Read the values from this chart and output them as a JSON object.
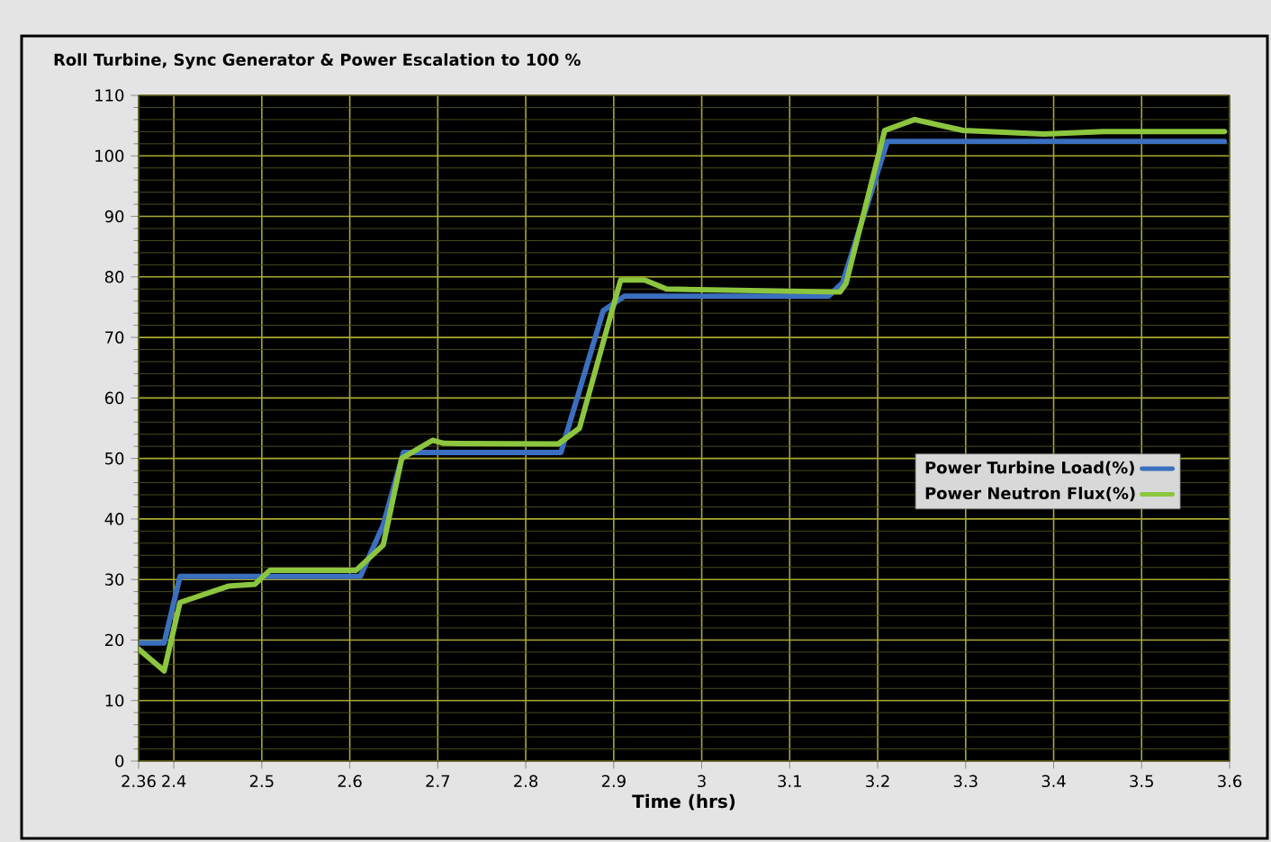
{
  "chart_data": {
    "type": "line",
    "title": "Roll Turbine, Sync Generator & Power Escalation to 100 %",
    "xlabel": "Time (hrs)",
    "xlim": [
      2.36,
      3.6
    ],
    "xticks": [
      2.36,
      2.4,
      2.5,
      2.6,
      2.7,
      2.8,
      2.9,
      3,
      3.1,
      3.2,
      3.3,
      3.4,
      3.5,
      3.6
    ],
    "ylim": [
      0,
      110
    ],
    "yticks": [
      0,
      {
        "value": 2,
        "label": null
      },
      {
        "value": 4,
        "label": null
      },
      {
        "value": 6,
        "label": null
      },
      {
        "value": 8,
        "label": null
      },
      10,
      {
        "value": 12,
        "label": null
      },
      {
        "value": 14,
        "label": null
      },
      {
        "value": 16,
        "label": null
      },
      {
        "value": 18,
        "label": null
      },
      20,
      {
        "value": 22,
        "label": null
      },
      {
        "value": 24,
        "label": null
      },
      {
        "value": 26,
        "label": null
      },
      {
        "value": 28,
        "label": null
      },
      30,
      {
        "value": 32,
        "label": null
      },
      {
        "value": 34,
        "label": null
      },
      {
        "value": 36,
        "label": null
      },
      {
        "value": 38,
        "label": null
      },
      40,
      {
        "value": 42,
        "label": null
      },
      {
        "value": 44,
        "label": null
      },
      {
        "value": 46,
        "label": null
      },
      {
        "value": 48,
        "label": null
      },
      50,
      {
        "value": 52,
        "label": null
      },
      {
        "value": 54,
        "label": null
      },
      {
        "value": 56,
        "label": null
      },
      {
        "value": 58,
        "label": null
      },
      60,
      {
        "value": 62,
        "label": null
      },
      {
        "value": 64,
        "label": null
      },
      {
        "value": 66,
        "label": null
      },
      {
        "value": 68,
        "label": null
      },
      70,
      {
        "value": 72,
        "label": null
      },
      {
        "value": 74,
        "label": null
      },
      {
        "value": 76,
        "label": null
      },
      {
        "value": 78,
        "label": null
      },
      80,
      {
        "value": 82,
        "label": null
      },
      {
        "value": 84,
        "label": null
      },
      {
        "value": 86,
        "label": null
      },
      {
        "value": 88,
        "label": null
      },
      90,
      {
        "value": 92,
        "label": null
      },
      {
        "value": 94,
        "label": null
      },
      {
        "value": 96,
        "label": null
      },
      {
        "value": 98,
        "label": null
      },
      100,
      {
        "value": 102,
        "label": null
      },
      {
        "value": 104,
        "label": null
      },
      {
        "value": 106,
        "label": null
      },
      {
        "value": 108,
        "label": null
      },
      110
    ],
    "grid": true,
    "legend": "right",
    "marker": "none",
    "line_style": "solid",
    "series": [
      {
        "name": "Power Turbine Load(%)",
        "color": "#3b6fbf",
        "x": [
          2.36,
          2.389,
          2.407,
          2.612,
          2.638,
          2.661,
          2.84,
          2.888,
          2.912,
          3.144,
          3.16,
          3.211,
          3.594
        ],
        "values": [
          19.5,
          19.5,
          30.5,
          30.5,
          39,
          51,
          51,
          74.4,
          76.8,
          76.8,
          79,
          102.4,
          102.4
        ]
      },
      {
        "name": "Power Neutron Flux(%)",
        "color": "#8cc63f",
        "x": [
          2.36,
          2.389,
          2.407,
          2.462,
          2.492,
          2.509,
          2.607,
          2.638,
          2.659,
          2.694,
          2.707,
          2.837,
          2.861,
          2.898,
          2.908,
          2.935,
          2.96,
          3.157,
          3.164,
          3.208,
          3.242,
          3.297,
          3.389,
          3.457,
          3.594
        ],
        "values": [
          18.5,
          14.9,
          26.2,
          28.9,
          29.2,
          31.5,
          31.5,
          35.7,
          50,
          53,
          52.5,
          52.4,
          55,
          74.4,
          79.5,
          79.5,
          78,
          77.5,
          78.9,
          104.2,
          106,
          104.2,
          103.6,
          104,
          104
        ]
      }
    ]
  }
}
